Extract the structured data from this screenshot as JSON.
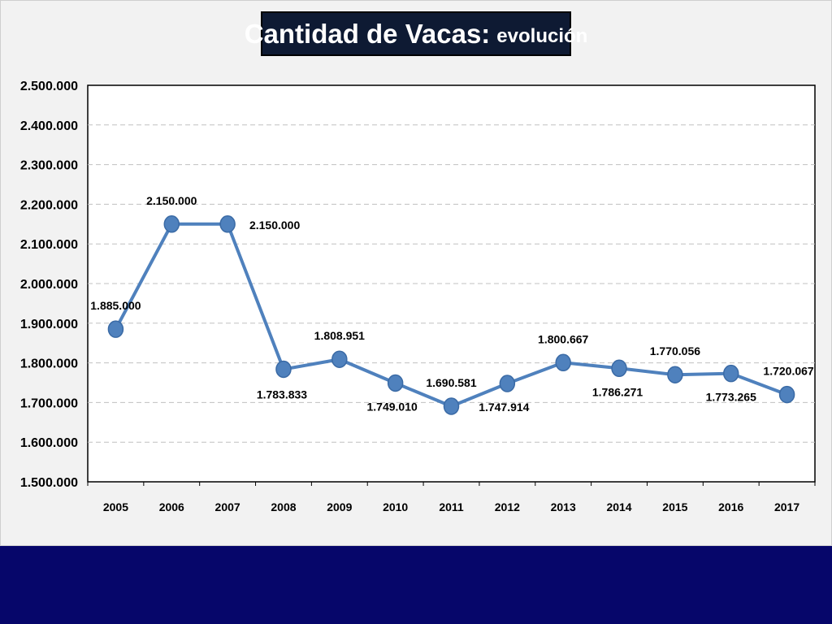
{
  "title": {
    "main": "Cantidad de Vacas:",
    "sub": "evolución"
  },
  "colors": {
    "line": "#4f81bd",
    "marker": "#4f81bd",
    "grid": "#c0c0c0",
    "title_bg": "#0e1a33",
    "footer_band": "#06066a"
  },
  "chart_data": {
    "type": "line",
    "categories": [
      "2005",
      "2006",
      "2007",
      "2008",
      "2009",
      "2010",
      "2011",
      "2012",
      "2013",
      "2014",
      "2015",
      "2016",
      "2017"
    ],
    "series": [
      {
        "values": [
          1885000,
          2150000,
          2150000,
          1783833,
          1808951,
          1749010,
          1690581,
          1747914,
          1800667,
          1786271,
          1770056,
          1773265,
          1720067
        ],
        "labels": [
          "1.885.000",
          "2.150.000",
          "2.150.000",
          "1.783.833",
          "1.808.951",
          "1.749.010",
          "1.690.581",
          "1.747.914",
          "1.800.667",
          "1.786.271",
          "1.770.056",
          "1.773.265",
          "1.720.067"
        ]
      }
    ],
    "ylim": [
      1500000,
      2500000
    ],
    "yticks": [
      1500000,
      1600000,
      1700000,
      1800000,
      1900000,
      2000000,
      2100000,
      2200000,
      2300000,
      2400000,
      2500000
    ],
    "ytick_labels": [
      "1.500.000",
      "1.600.000",
      "1.700.000",
      "1.800.000",
      "1.900.000",
      "2.000.000",
      "2.100.000",
      "2.200.000",
      "2.300.000",
      "2.400.000",
      "2.500.000"
    ],
    "grid": true,
    "legend": "none"
  }
}
